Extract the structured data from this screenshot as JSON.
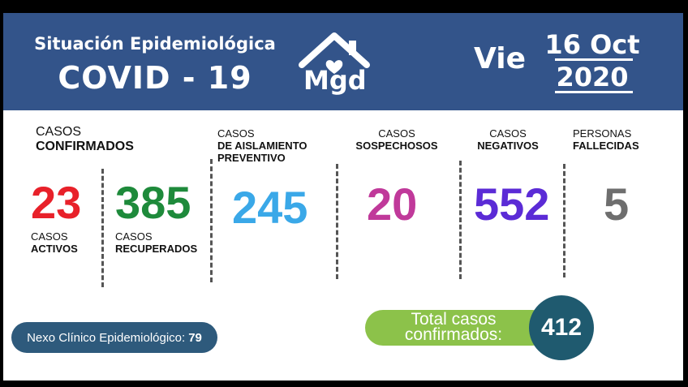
{
  "header": {
    "subtitle": "Situación Epidemiológica",
    "title": "COVID - 19",
    "logo_text": "Mgd",
    "logo_icon": "house-heart-icon",
    "day": "Vie",
    "date_line1": "16 Oct",
    "date_line2": "2020",
    "background_color": "#33548a"
  },
  "stats": {
    "confirmados": {
      "label_line1": "CASOS",
      "label_line2": "CONFIRMADOS"
    },
    "activos": {
      "value": "23",
      "label_line1": "CASOS",
      "label_line2": "ACTIVOS",
      "color": "#e8212a"
    },
    "recuperados": {
      "value": "385",
      "label_line1": "CASOS",
      "label_line2": "RECUPERADOS",
      "color": "#1e8a3b"
    },
    "aislamiento": {
      "value": "245",
      "label_line1": "CASOS",
      "label_line2": "DE AISLAMIENTO",
      "label_line3": "PREVENTIVO",
      "color": "#3aa8e8"
    },
    "sospechosos": {
      "value": "20",
      "label_line1": "CASOS",
      "label_line2": "SOSPECHOSOS",
      "color": "#c0399a"
    },
    "negativos": {
      "value": "552",
      "label_line1": "CASOS",
      "label_line2": "NEGATIVOS",
      "color": "#5b2bd6"
    },
    "fallecidas": {
      "value": "5",
      "label_line1": "PERSONAS",
      "label_line2": "FALLECIDAS",
      "color": "#6e6e6e"
    }
  },
  "nexo": {
    "label": "Nexo Clínico Epidemiológico:",
    "value": "79"
  },
  "total": {
    "label_line1": "Total casos",
    "label_line2": "confirmados:",
    "value": "412"
  }
}
